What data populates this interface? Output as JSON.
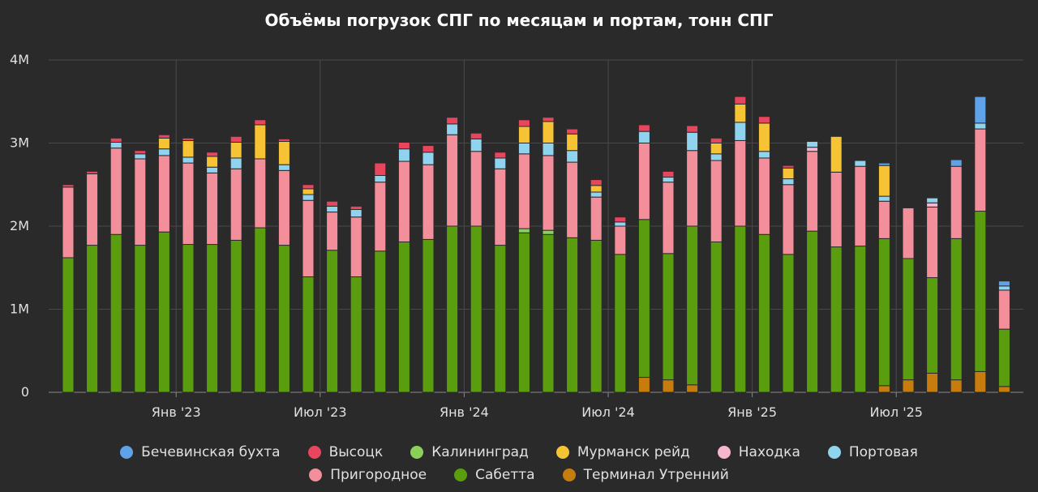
{
  "chart_data": {
    "type": "bar",
    "stacked": true,
    "title": "Объёмы погрузок СПГ по месяцам и портам, тонн СПГ",
    "xlabel": "",
    "ylabel": "",
    "ylim": [
      0,
      4000000
    ],
    "yticks": [
      0,
      1000000,
      2000000,
      3000000,
      4000000
    ],
    "ytick_labels": [
      "0",
      "1M",
      "2M",
      "3M",
      "4M"
    ],
    "xtick_labels": [
      {
        "label": "Янв '23",
        "index": 5
      },
      {
        "label": "Июл '23",
        "index": 11
      },
      {
        "label": "Янв '24",
        "index": 17
      },
      {
        "label": "Июл '24",
        "index": 23
      },
      {
        "label": "Янв '25",
        "index": 29
      },
      {
        "label": "Июл '25",
        "index": 35
      }
    ],
    "grid": true,
    "legend_position": "bottom",
    "categories": [
      "Авг '22",
      "Сен '22",
      "Окт '22",
      "Ноя '22",
      "Дек '22",
      "Янв '23",
      "Фев '23",
      "Мар '23",
      "Апр '23",
      "Май '23",
      "Июн '23",
      "Июл '23",
      "Авг '23",
      "Сен '23",
      "Окт '23",
      "Ноя '23",
      "Дек '23",
      "Янв '24",
      "Фев '24",
      "Мар '24",
      "Апр '24",
      "Май '24",
      "Июн '24",
      "Июл '24",
      "Авг '24",
      "Сен '24",
      "Окт '24",
      "Ноя '24",
      "Дек '24",
      "Янв '25",
      "Фев '25",
      "Мар '25",
      "Апр '25",
      "Май '25",
      "Июн '25",
      "Июл '25",
      "Авг '25",
      "Сен '25",
      "Окт '25",
      "Ноя '25"
    ],
    "series": [
      {
        "name": "Терминал Утренний",
        "color": "#c77c0e",
        "values": [
          0,
          0,
          0,
          0,
          0,
          0,
          0,
          0,
          0,
          0,
          0,
          0,
          0,
          0,
          0,
          0,
          0,
          0,
          0,
          0,
          0,
          0,
          0,
          0,
          180000,
          150000,
          90000,
          0,
          0,
          0,
          0,
          0,
          0,
          0,
          80000,
          150000,
          230000,
          150000,
          250000,
          70000
        ]
      },
      {
        "name": "Сабетта",
        "color": "#5a9e10",
        "values": [
          1620000,
          1770000,
          1900000,
          1770000,
          1930000,
          1780000,
          1780000,
          1830000,
          1980000,
          1770000,
          1390000,
          1710000,
          1390000,
          1700000,
          1810000,
          1840000,
          2000000,
          2000000,
          1770000,
          1920000,
          1900000,
          1860000,
          1830000,
          1660000,
          1900000,
          1520000,
          1910000,
          1810000,
          2000000,
          1900000,
          1660000,
          1940000,
          1750000,
          1760000,
          1770000,
          1460000,
          1150000,
          1700000,
          1930000,
          690000
        ]
      },
      {
        "name": "Калининград",
        "color": "#8bd05a",
        "values": [
          0,
          0,
          0,
          0,
          0,
          0,
          0,
          0,
          0,
          0,
          0,
          0,
          0,
          0,
          0,
          0,
          0,
          0,
          0,
          50000,
          50000,
          0,
          0,
          0,
          0,
          0,
          0,
          0,
          0,
          0,
          0,
          0,
          0,
          0,
          0,
          0,
          0,
          0,
          0,
          0
        ]
      },
      {
        "name": "Пригородное",
        "color": "#f28f9a",
        "values": [
          850000,
          860000,
          1040000,
          1040000,
          920000,
          980000,
          860000,
          860000,
          830000,
          900000,
          920000,
          460000,
          720000,
          830000,
          970000,
          900000,
          1100000,
          900000,
          920000,
          900000,
          900000,
          910000,
          520000,
          340000,
          920000,
          860000,
          910000,
          980000,
          1030000,
          920000,
          840000,
          960000,
          900000,
          960000,
          450000,
          610000,
          850000,
          870000,
          990000,
          470000
        ]
      },
      {
        "name": "Находка",
        "color": "#f7b5d0",
        "values": [
          0,
          0,
          0,
          0,
          0,
          0,
          0,
          0,
          0,
          0,
          0,
          0,
          0,
          0,
          0,
          0,
          0,
          0,
          0,
          0,
          0,
          0,
          0,
          0,
          0,
          0,
          0,
          0,
          0,
          0,
          0,
          50000,
          0,
          0,
          0,
          0,
          50000,
          0,
          0,
          0
        ]
      },
      {
        "name": "Портовая",
        "color": "#8fd3ef",
        "values": [
          0,
          0,
          70000,
          60000,
          80000,
          70000,
          70000,
          130000,
          0,
          70000,
          70000,
          70000,
          90000,
          80000,
          150000,
          150000,
          130000,
          150000,
          130000,
          130000,
          150000,
          140000,
          60000,
          50000,
          140000,
          60000,
          220000,
          80000,
          220000,
          80000,
          70000,
          70000,
          0,
          70000,
          60000,
          0,
          60000,
          0,
          70000,
          50000
        ]
      },
      {
        "name": "Мурманск рейд",
        "color": "#f6c334",
        "values": [
          0,
          0,
          0,
          0,
          130000,
          200000,
          130000,
          190000,
          410000,
          280000,
          70000,
          0,
          0,
          0,
          0,
          0,
          0,
          0,
          0,
          200000,
          260000,
          200000,
          80000,
          0,
          0,
          0,
          0,
          130000,
          220000,
          340000,
          130000,
          0,
          430000,
          0,
          370000,
          0,
          0,
          0,
          0,
          0
        ]
      },
      {
        "name": "Высоцк",
        "color": "#e8465f",
        "values": [
          30000,
          30000,
          50000,
          40000,
          40000,
          30000,
          50000,
          70000,
          60000,
          30000,
          50000,
          60000,
          40000,
          150000,
          80000,
          80000,
          80000,
          70000,
          70000,
          80000,
          50000,
          60000,
          70000,
          60000,
          80000,
          70000,
          80000,
          60000,
          90000,
          80000,
          30000,
          0,
          0,
          0,
          0,
          0,
          0,
          0,
          0,
          0
        ]
      },
      {
        "name": "Бечевинская бухта",
        "color": "#5fa2e8",
        "values": [
          0,
          0,
          0,
          0,
          0,
          0,
          0,
          0,
          0,
          0,
          0,
          0,
          0,
          0,
          0,
          0,
          0,
          0,
          0,
          0,
          0,
          0,
          0,
          0,
          0,
          0,
          0,
          0,
          0,
          0,
          0,
          0,
          0,
          0,
          30000,
          0,
          0,
          80000,
          320000,
          60000
        ]
      }
    ]
  },
  "legend_rows": [
    [
      "Бечевинская бухта",
      "Высоцк",
      "Калининград",
      "Мурманск рейд",
      "Находка",
      "Портовая"
    ],
    [
      "Пригородное",
      "Сабетта",
      "Терминал Утренний"
    ]
  ]
}
